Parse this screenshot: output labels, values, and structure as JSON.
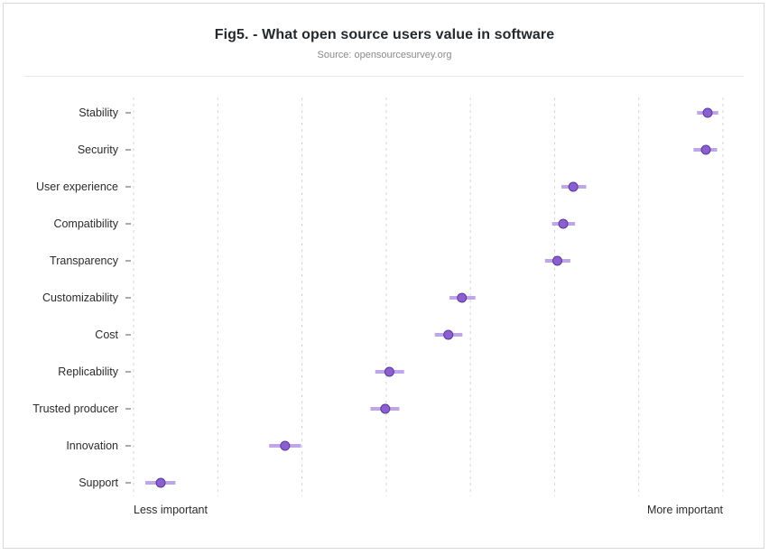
{
  "title": "Fig5. - What open source users value in software",
  "subtitle": "Source: opensourcesurvey.org",
  "colors": {
    "point": "#8b5fcf",
    "point_stroke": "#5b3a9a",
    "interval": "#b99ce8",
    "gridline": "#d6d6d6",
    "text": "#2b2b2b"
  },
  "chart_data": {
    "type": "scatter",
    "title": "Fig5. - What open source users value in software",
    "subtitle": "Source: opensourcesurvey.org",
    "xlabel": "",
    "ylabel": "",
    "x_axis_labels": {
      "low": "Less important",
      "high": "More important"
    },
    "xlim": [
      0,
      1
    ],
    "grid": true,
    "categories": [
      "Stability",
      "Security",
      "User experience",
      "Compatibility",
      "Transparency",
      "Customizability",
      "Cost",
      "Replicability",
      "Trusted producer",
      "Innovation",
      "Support"
    ],
    "values": [
      0.974,
      0.971,
      0.746,
      0.729,
      0.719,
      0.557,
      0.534,
      0.434,
      0.427,
      0.257,
      0.046
    ],
    "interval_low": [
      0.956,
      0.95,
      0.726,
      0.71,
      0.698,
      0.536,
      0.511,
      0.41,
      0.402,
      0.23,
      0.02
    ],
    "interval_high": [
      0.992,
      0.99,
      0.768,
      0.749,
      0.741,
      0.58,
      0.558,
      0.459,
      0.451,
      0.284,
      0.071
    ]
  }
}
